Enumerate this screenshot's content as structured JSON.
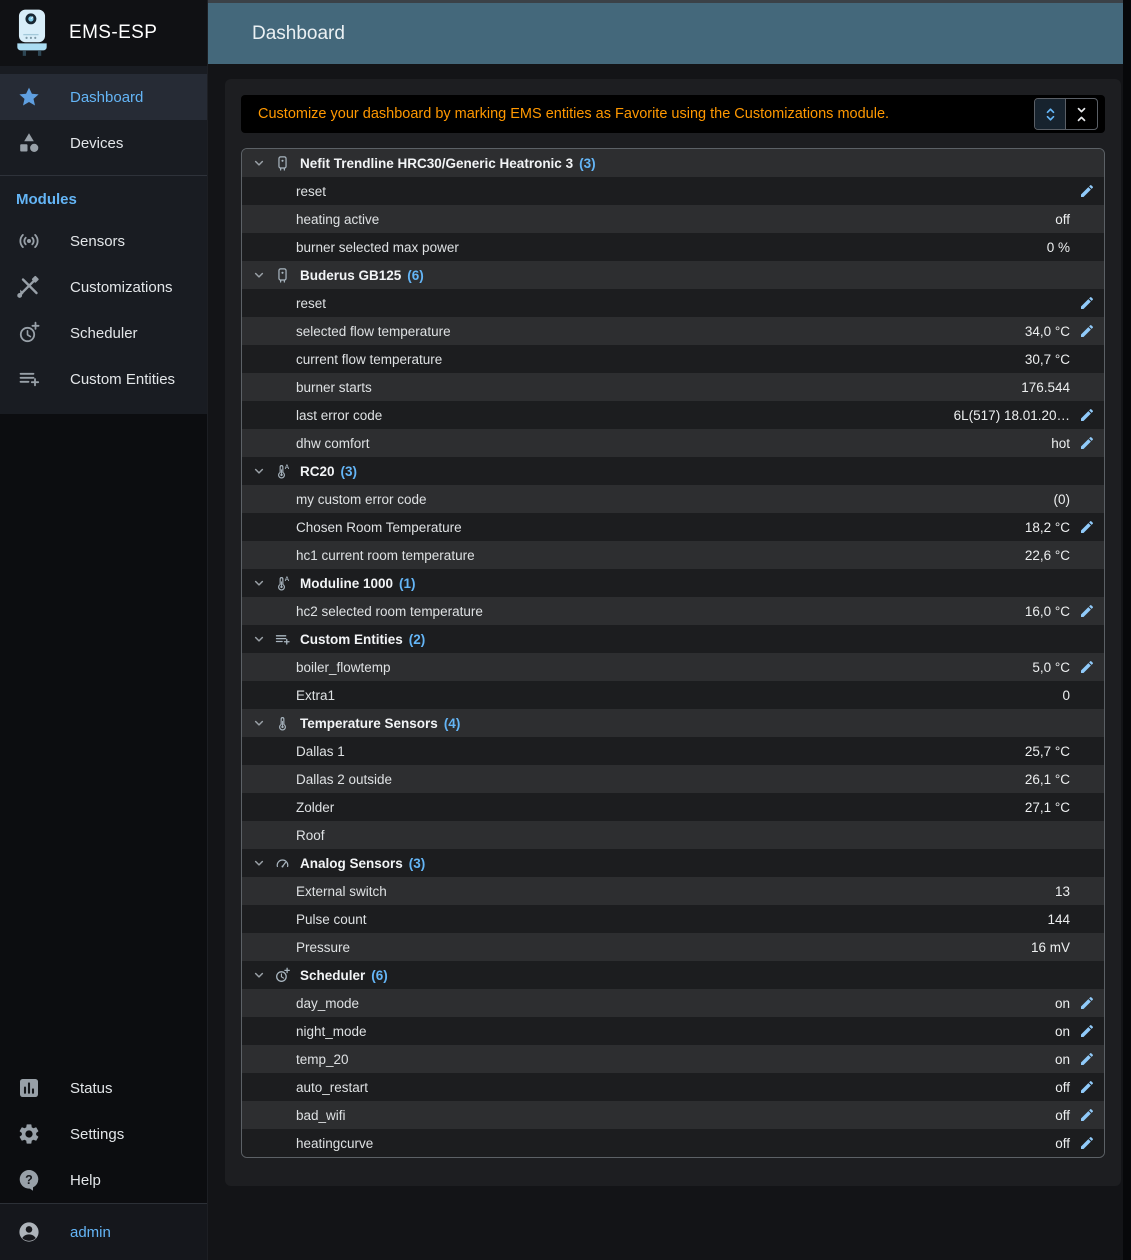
{
  "app": {
    "title": "EMS-ESP"
  },
  "header": {
    "title": "Dashboard"
  },
  "sidebar": {
    "items": [
      {
        "label": "Dashboard",
        "icon": "star",
        "active": true
      },
      {
        "label": "Devices",
        "icon": "category",
        "active": false
      }
    ],
    "section_label": "Modules",
    "module_items": [
      {
        "label": "Sensors",
        "icon": "sensors"
      },
      {
        "label": "Customizations",
        "icon": "construction"
      },
      {
        "label": "Scheduler",
        "icon": "more-time"
      },
      {
        "label": "Custom Entities",
        "icon": "playlist-add"
      }
    ],
    "bottom_items": [
      {
        "label": "Status",
        "icon": "chart"
      },
      {
        "label": "Settings",
        "icon": "gear"
      },
      {
        "label": "Help",
        "icon": "help-bubble"
      }
    ],
    "user": {
      "label": "admin",
      "icon": "account-circle"
    }
  },
  "notice": {
    "text": "Customize your dashboard by marking EMS entities as Favorite using the Customizations module."
  },
  "controls": {
    "expand_all_icon": "unfold-more",
    "collapse_all_icon": "unfold-less"
  },
  "table": {
    "groups": [
      {
        "name": "Nefit Trendline HRC30/Generic Heatronic 3",
        "count": "(3)",
        "icon": "boiler",
        "rows": [
          {
            "name": "reset",
            "value": "",
            "editable": true
          },
          {
            "name": "heating active",
            "value": "off",
            "editable": false
          },
          {
            "name": "burner selected max power",
            "value": "0 %",
            "editable": false
          }
        ]
      },
      {
        "name": "Buderus GB125",
        "count": "(6)",
        "icon": "boiler",
        "rows": [
          {
            "name": "reset",
            "value": "",
            "editable": true
          },
          {
            "name": "selected flow temperature",
            "value": "34,0 °C",
            "editable": true
          },
          {
            "name": "current flow temperature",
            "value": "30,7 °C",
            "editable": false
          },
          {
            "name": "burner starts",
            "value": "176.544",
            "editable": false
          },
          {
            "name": "last error code",
            "value": "6L(517) 18.01.20…",
            "editable": true
          },
          {
            "name": "dhw comfort",
            "value": "hot",
            "editable": true
          }
        ]
      },
      {
        "name": "RC20",
        "count": "(3)",
        "icon": "thermostat-auto",
        "rows": [
          {
            "name": "my custom error code",
            "value": "(0)",
            "editable": false
          },
          {
            "name": "Chosen Room Temperature",
            "value": "18,2 °C",
            "editable": true
          },
          {
            "name": "hc1 current room temperature",
            "value": "22,6 °C",
            "editable": false
          }
        ]
      },
      {
        "name": "Moduline 1000",
        "count": "(1)",
        "icon": "thermostat-auto",
        "rows": [
          {
            "name": "hc2 selected room temperature",
            "value": "16,0 °C",
            "editable": true
          }
        ]
      },
      {
        "name": "Custom Entities",
        "count": "(2)",
        "icon": "playlist-add",
        "rows": [
          {
            "name": "boiler_flowtemp",
            "value": "5,0 °C",
            "editable": true
          },
          {
            "name": "Extra1",
            "value": "0",
            "editable": false
          }
        ]
      },
      {
        "name": "Temperature Sensors",
        "count": "(4)",
        "icon": "thermometer",
        "rows": [
          {
            "name": "Dallas 1",
            "value": "25,7 °C",
            "editable": false
          },
          {
            "name": "Dallas 2 outside",
            "value": "26,1 °C",
            "editable": false
          },
          {
            "name": "Zolder",
            "value": "27,1 °C",
            "editable": false
          },
          {
            "name": "Roof",
            "value": "",
            "editable": false
          }
        ]
      },
      {
        "name": "Analog Sensors",
        "count": "(3)",
        "icon": "gauge",
        "rows": [
          {
            "name": "External switch",
            "value": "13",
            "editable": false
          },
          {
            "name": "Pulse count",
            "value": "144",
            "editable": false
          },
          {
            "name": "Pressure",
            "value": "16 mV",
            "editable": false
          }
        ]
      },
      {
        "name": "Scheduler",
        "count": "(6)",
        "icon": "more-time",
        "rows": [
          {
            "name": "day_mode",
            "value": "on",
            "editable": true
          },
          {
            "name": "night_mode",
            "value": "on",
            "editable": true
          },
          {
            "name": "temp_20",
            "value": "on",
            "editable": true
          },
          {
            "name": "auto_restart",
            "value": "off",
            "editable": true
          },
          {
            "name": "bad_wifi",
            "value": "off",
            "editable": true
          },
          {
            "name": "heatingcurve",
            "value": "off",
            "editable": true
          }
        ]
      }
    ]
  },
  "colors": {
    "accent_blue": "#64b5f6",
    "edit_blue": "#90caf9",
    "notice_orange": "#ff9800",
    "header_teal": "#44687b",
    "row_light": "#2d2e30",
    "row_dark": "#1c1d1f"
  }
}
